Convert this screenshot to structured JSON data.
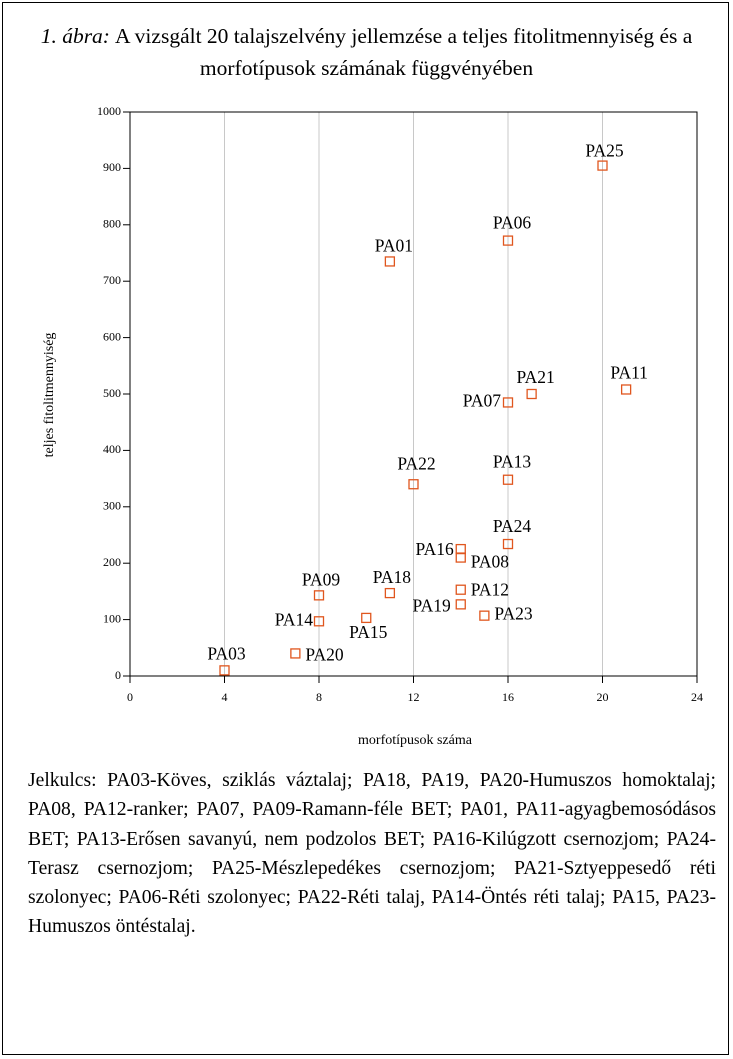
{
  "chart_data": {
    "type": "scatter",
    "title_prefix": "1. ábra:",
    "title": "A vizsgált 20 talajszelvény jellemzése a teljes fitolitmennyiség és a morfotípusok számának függvényében",
    "xlabel": "morfotípusok száma",
    "ylabel": "teljes fitolitmennyiség",
    "point_labels": [
      "PA25",
      "PA06",
      "PA01",
      "PA21",
      "PA11",
      "PA07",
      "PA22",
      "PA13",
      "PA24",
      "PA16",
      "PA08",
      "PA09",
      "PA18",
      "PA12",
      "PA19",
      "PA23",
      "PA15",
      "PA14",
      "PA20",
      "PA03"
    ],
    "x": [
      20,
      16,
      11,
      17,
      21,
      16,
      12,
      16,
      16,
      14,
      14,
      8,
      11,
      14,
      14,
      15,
      10,
      8,
      7,
      4
    ],
    "y": [
      905,
      772,
      735,
      500,
      508,
      485,
      340,
      348,
      234,
      225,
      210,
      143,
      147,
      153,
      127,
      107,
      103,
      97,
      40,
      10
    ],
    "color": "#e0561e",
    "xlim": [
      0,
      24
    ],
    "xticks": [
      0,
      4,
      8,
      12,
      16,
      20,
      24
    ],
    "ylim": [
      0,
      1000
    ],
    "yticks": [
      0,
      100,
      200,
      300,
      400,
      500,
      600,
      700,
      800,
      900,
      1000
    ],
    "grid": "x",
    "note": "Jelkulcs: PA03-Köves, sziklás váztalaj; PA18, PA19, PA20-Humuszos homoktalaj; PA08, PA12-ranker; PA07, PA09-Ramann-féle BET; PA01, PA11-agyagbemosódásos BET; PA13-Erősen savanyú, nem podzolos BET; PA16-Kilúgzott csernozjom; PA24-Terasz csernozjom; PA25-Mészlepedékes csernozjom; PA21-Sztyeppesedő réti szolonyec; PA06-Réti szolonyec; PA22-Réti talaj, PA14-Öntés réti talaj; PA15, PA23-Humuszos öntéstalaj."
  }
}
